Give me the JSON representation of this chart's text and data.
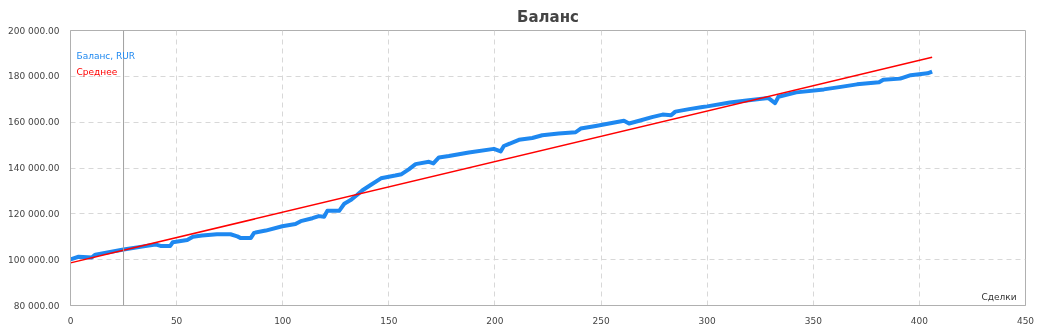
{
  "chart_data": {
    "type": "line",
    "title": "Баланс",
    "xlabel": "Сделки",
    "series": [
      {
        "name": "Баланс, RUR",
        "color": "#1e88f0",
        "x": [
          0,
          3.8,
          10,
          11.7,
          25,
          33.7,
          40,
          42.4,
          47,
          48.2,
          55,
          57.7,
          62,
          69,
          75.4,
          78.6,
          80,
          85,
          86.5,
          92,
          99.8,
          106,
          108.5,
          114,
          117,
          119.5,
          121,
          126.6,
          129,
          132,
          135,
          137.6,
          141.6,
          146.3,
          150,
          153,
          156,
          159.4,
          162.6,
          168.9,
          171,
          173.6,
          178.3,
          187.7,
          199.5,
          202.7,
          204.2,
          211.3,
          217.6,
          222.3,
          230,
          238,
          240.4,
          247.5,
          253.8,
          260.8,
          263.2,
          268,
          274,
          279,
          283,
          285,
          291.5,
          297.8,
          300,
          310.7,
          318.6,
          328.9,
          332,
          333.6,
          342,
          355,
          363,
          370.6,
          381,
          383,
          391,
          395.9,
          403.8,
          406
        ],
        "values": [
          100150,
          101270,
          100950,
          102200,
          104400,
          105700,
          106660,
          106000,
          106000,
          107600,
          108600,
          110000,
          110500,
          111100,
          111100,
          110150,
          109500,
          109500,
          111700,
          112700,
          114600,
          115550,
          116800,
          118100,
          119000,
          118700,
          121300,
          121300,
          124400,
          126000,
          128200,
          130300,
          132700,
          135500,
          136200,
          136700,
          137300,
          139400,
          141700,
          142700,
          142000,
          144600,
          145200,
          146800,
          148350,
          147250,
          149600,
          152300,
          153100,
          154300,
          155100,
          155600,
          157200,
          158300,
          159400,
          160600,
          159400,
          160600,
          162200,
          163300,
          163000,
          164600,
          165700,
          166600,
          166900,
          168600,
          169500,
          170500,
          168300,
          171100,
          173000,
          174300,
          175400,
          176500,
          177400,
          178500,
          179000,
          180500,
          181300,
          182100
        ]
      },
      {
        "name": "Среднее",
        "color": "#ff0000",
        "x": [
          0,
          406
        ],
        "values": [
          98600,
          188300
        ]
      }
    ],
    "xlim": [
      0,
      450
    ],
    "ylim": [
      80000,
      200000
    ],
    "xticks": [
      0,
      50,
      100,
      150,
      200,
      250,
      300,
      350,
      400,
      450
    ],
    "yticks": [
      {
        "value": 80000,
        "label": "80 000.00"
      },
      {
        "value": 100000,
        "label": "100 000.00"
      },
      {
        "value": 120000,
        "label": "120 000.00"
      },
      {
        "value": 140000,
        "label": "140 000.00"
      },
      {
        "value": 160000,
        "label": "160 000.00"
      },
      {
        "value": 180000,
        "label": "180 000.00"
      },
      {
        "value": 200000,
        "label": "200 000.00"
      }
    ],
    "ref_lines": [
      {
        "axis": "x",
        "value": 25,
        "color": "#a0a0a0"
      }
    ],
    "grid": true,
    "legend": "top left",
    "line_style": "solid",
    "marker": "none"
  }
}
